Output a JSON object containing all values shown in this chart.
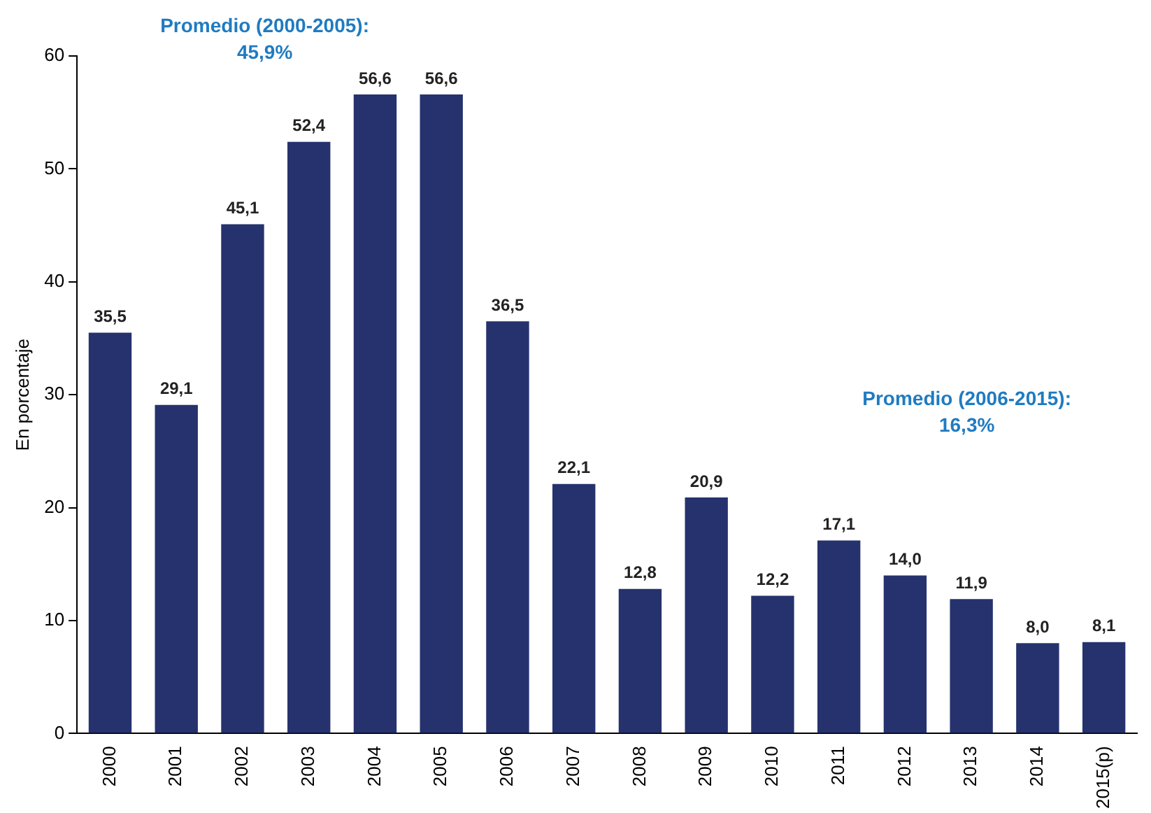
{
  "chart_data": {
    "type": "bar",
    "ylabel": "En porcentaje",
    "categories": [
      "2000",
      "2001",
      "2002",
      "2003",
      "2004",
      "2005",
      "2006",
      "2007",
      "2008",
      "2009",
      "2010",
      "2011",
      "2012",
      "2013",
      "2014",
      "2015(p)"
    ],
    "values": [
      35.5,
      29.1,
      45.1,
      52.4,
      56.6,
      56.6,
      36.5,
      22.1,
      12.8,
      20.9,
      12.2,
      17.1,
      14.0,
      11.9,
      8.0,
      8.1
    ],
    "value_labels": [
      "35,5",
      "29,1",
      "45,1",
      "52,4",
      "56,6",
      "56,6",
      "36,5",
      "22,1",
      "12,8",
      "20,9",
      "12,2",
      "17,1",
      "14,0",
      "11,9",
      "8,0",
      "8,1"
    ],
    "color": "#25326e",
    "ylim": [
      0,
      60
    ],
    "yticks": [
      0,
      10,
      20,
      30,
      40,
      50,
      60
    ],
    "grid": false,
    "legend": false,
    "annotations": [
      "Promedio (2000-2005):\n45,9%",
      "Promedio (2006-2015):\n16,3%"
    ]
  }
}
